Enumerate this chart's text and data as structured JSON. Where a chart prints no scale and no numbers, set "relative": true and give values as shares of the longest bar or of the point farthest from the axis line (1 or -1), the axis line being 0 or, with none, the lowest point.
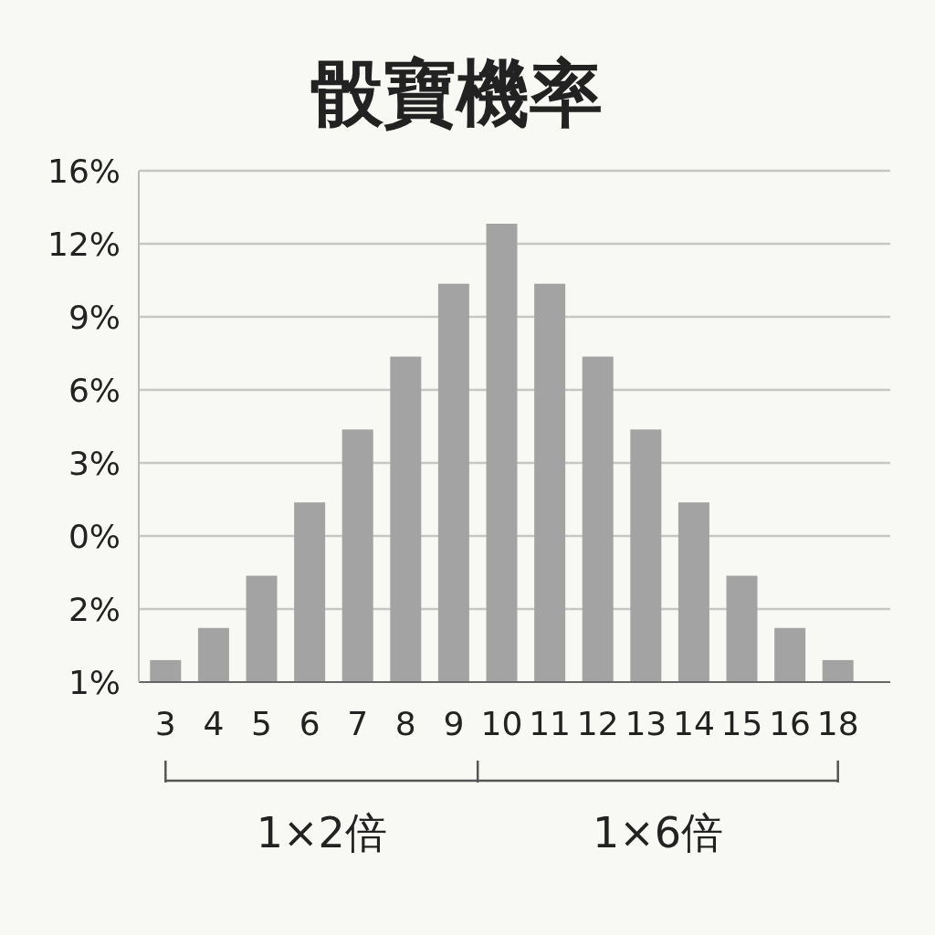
{
  "chart_data": {
    "type": "bar",
    "title": "骰寶機率",
    "categories": [
      "3",
      "4",
      "5",
      "6",
      "7",
      "8",
      "9",
      "10",
      "11",
      "12",
      "13",
      "14",
      "15",
      "16",
      "18"
    ],
    "values": [
      0.048,
      0.118,
      0.232,
      0.392,
      0.551,
      0.71,
      0.869,
      1,
      0.869,
      0.71,
      0.551,
      0.392,
      0.232,
      0.118,
      0.048
    ],
    "relative": true,
    "color": "#a3a3a3",
    "grid": "y",
    "annotations": [
      "16%",
      "12%",
      "9%",
      "6%",
      "3%",
      "0%",
      "2%",
      "1%",
      "1×2倍",
      "1×6倍"
    ]
  }
}
